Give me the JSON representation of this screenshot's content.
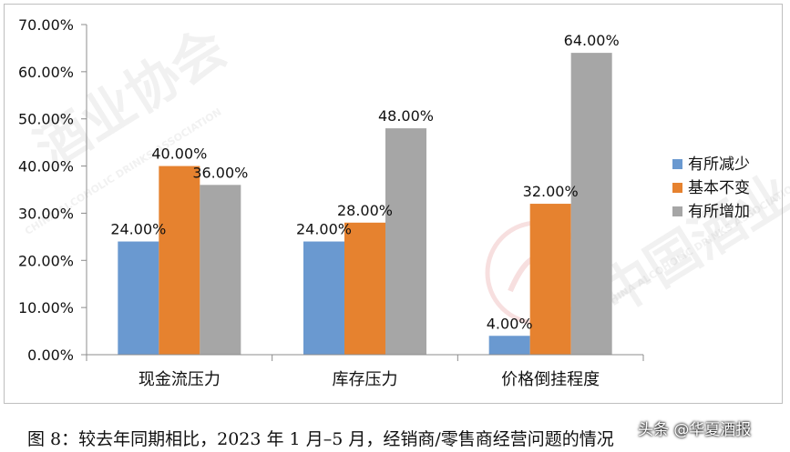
{
  "chart_data": {
    "type": "bar",
    "categories": [
      "现金流压力",
      "库存压力",
      "价格倒挂程度"
    ],
    "series": [
      {
        "name": "有所减少",
        "values": [
          24.0,
          24.0,
          4.0
        ],
        "color": "#6a99d0"
      },
      {
        "name": "基本不变",
        "values": [
          40.0,
          28.0,
          32.0
        ],
        "color": "#e6822f"
      },
      {
        "name": "有所增加",
        "values": [
          36.0,
          48.0,
          64.0
        ],
        "color": "#a6a6a6"
      }
    ],
    "data_labels": [
      [
        "24.00%",
        "40.00%",
        "36.00%"
      ],
      [
        "24.00%",
        "28.00%",
        "48.00%"
      ],
      [
        "4.00%",
        "32.00%",
        "64.00%"
      ]
    ],
    "y_ticks": [
      0,
      10,
      20,
      30,
      40,
      50,
      60,
      70
    ],
    "y_tick_labels": [
      "0.00%",
      "10.00%",
      "20.00%",
      "30.00%",
      "40.00%",
      "50.00%",
      "60.00%",
      "70.00%"
    ],
    "ylim": [
      0,
      70
    ],
    "grid": false,
    "legend": "right"
  },
  "caption": "图 8：较去年同期相比，2023 年 1 月–5 月，经销商/零售商经营问题的情况",
  "source_tag": "头条 @华夏酒报",
  "watermarks": [
    "酒业协会",
    "CHINA ALCOHOLIC DRINKS ASSOCIATION",
    "中国酒业",
    "CHINA ALCOHOLIC DRINKS ASSOCIATION"
  ]
}
